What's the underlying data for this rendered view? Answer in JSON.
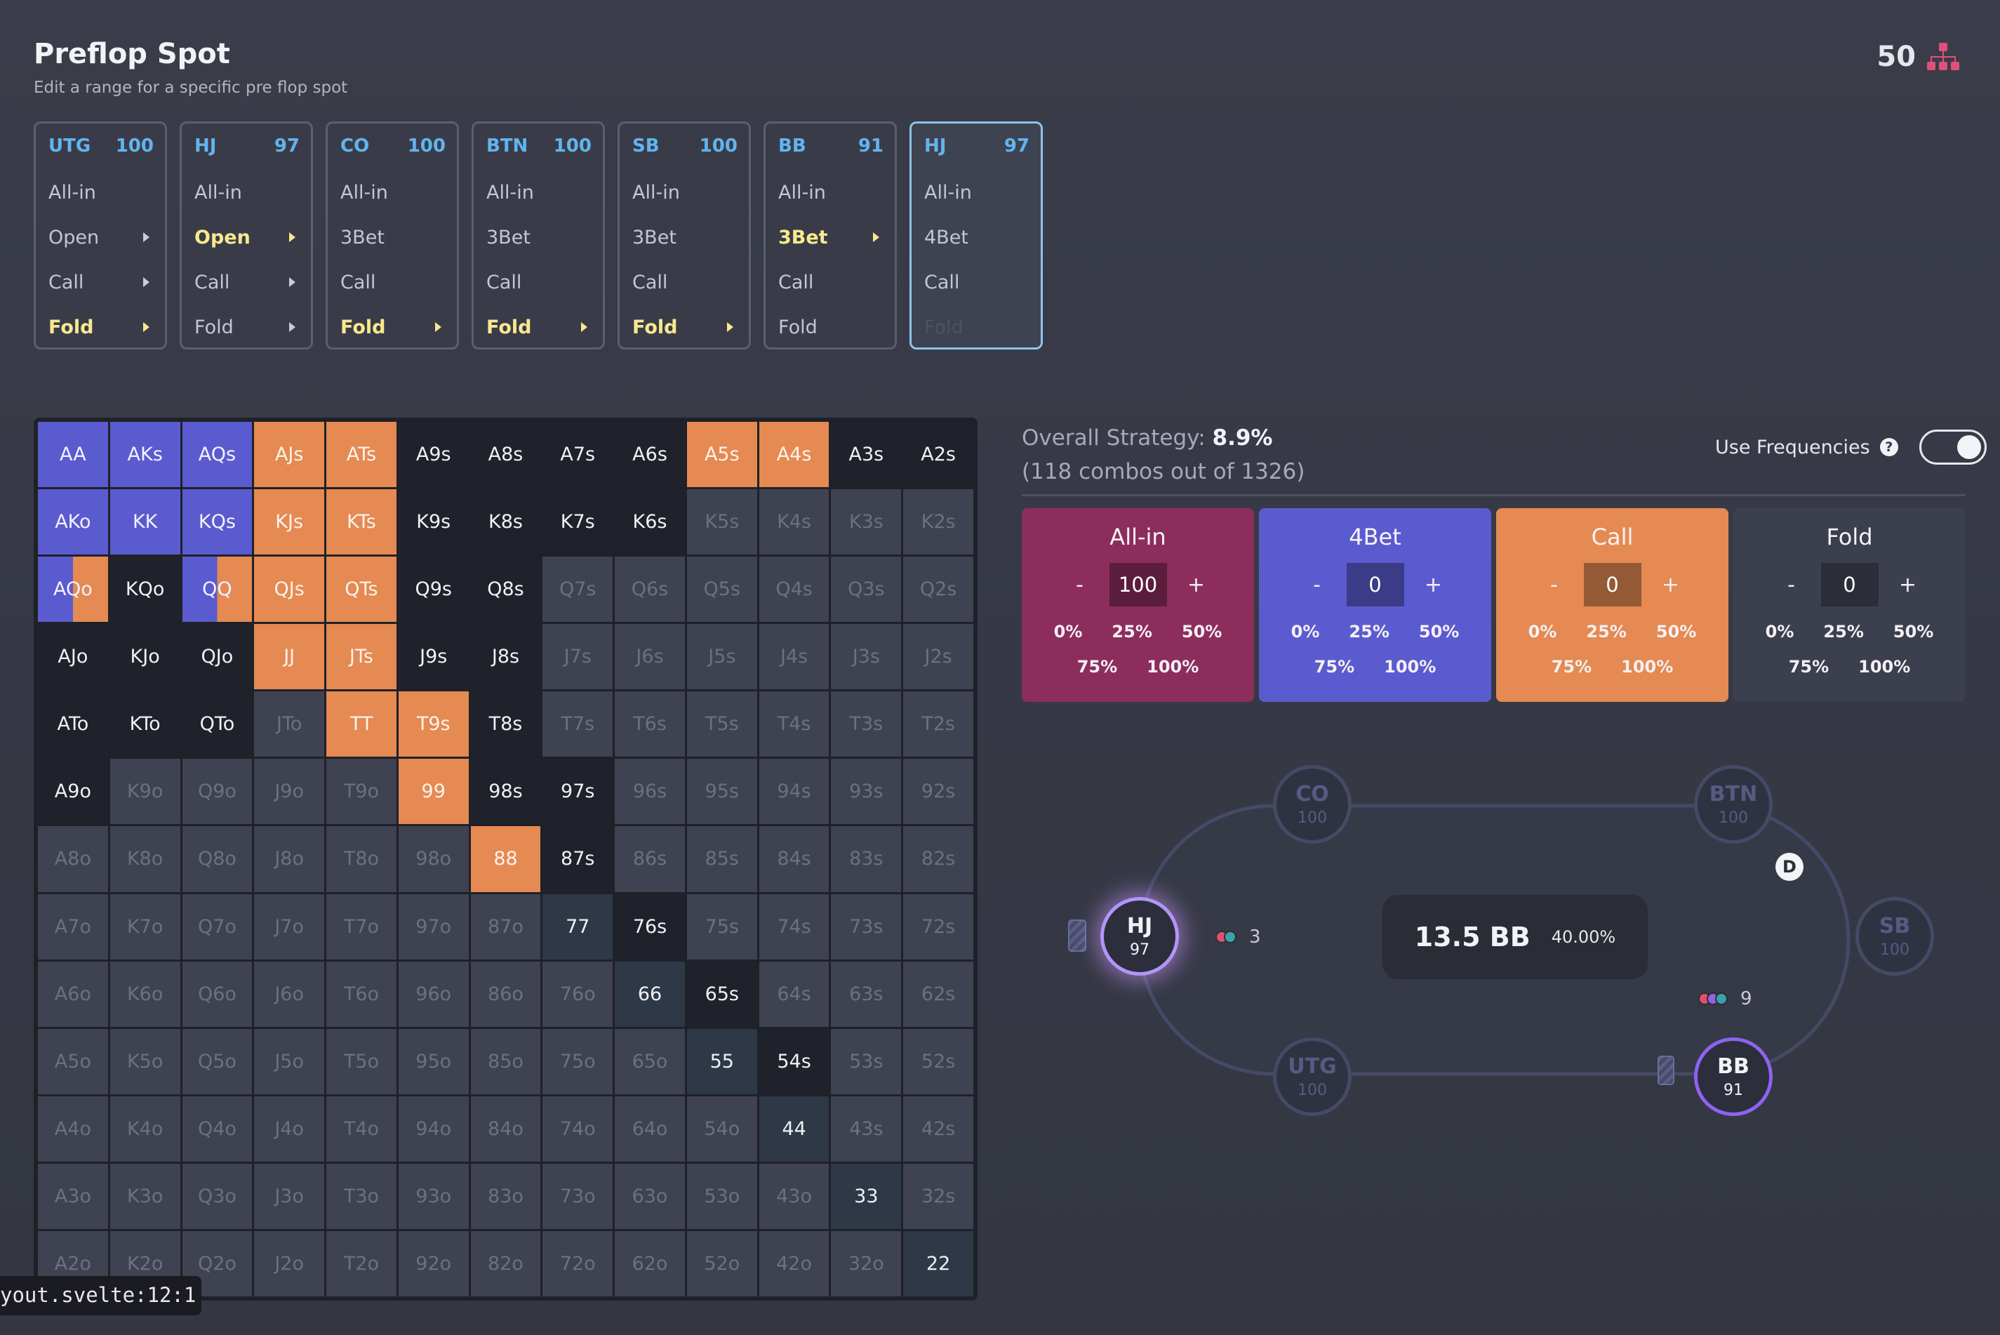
{
  "header": {
    "title": "Preflop Spot",
    "subtitle": "Edit a range for a specific pre flop spot"
  },
  "counter": {
    "value": "50",
    "icon": "hierarchy-icon"
  },
  "spots": [
    {
      "pos": "UTG",
      "stack": "100",
      "active": false,
      "actions": [
        {
          "label": "All-in",
          "arrow": false,
          "state": "normal"
        },
        {
          "label": "Open",
          "arrow": true,
          "state": "normal"
        },
        {
          "label": "Call",
          "arrow": true,
          "state": "normal"
        },
        {
          "label": "Fold",
          "arrow": true,
          "state": "selected"
        }
      ]
    },
    {
      "pos": "HJ",
      "stack": "97",
      "active": false,
      "actions": [
        {
          "label": "All-in",
          "arrow": false,
          "state": "normal"
        },
        {
          "label": "Open",
          "arrow": true,
          "state": "selected"
        },
        {
          "label": "Call",
          "arrow": true,
          "state": "normal"
        },
        {
          "label": "Fold",
          "arrow": true,
          "state": "normal"
        }
      ]
    },
    {
      "pos": "CO",
      "stack": "100",
      "active": false,
      "actions": [
        {
          "label": "All-in",
          "arrow": false,
          "state": "normal"
        },
        {
          "label": "3Bet",
          "arrow": false,
          "state": "normal"
        },
        {
          "label": "Call",
          "arrow": false,
          "state": "normal"
        },
        {
          "label": "Fold",
          "arrow": true,
          "state": "selected"
        }
      ]
    },
    {
      "pos": "BTN",
      "stack": "100",
      "active": false,
      "actions": [
        {
          "label": "All-in",
          "arrow": false,
          "state": "normal"
        },
        {
          "label": "3Bet",
          "arrow": false,
          "state": "normal"
        },
        {
          "label": "Call",
          "arrow": false,
          "state": "normal"
        },
        {
          "label": "Fold",
          "arrow": true,
          "state": "selected"
        }
      ]
    },
    {
      "pos": "SB",
      "stack": "100",
      "active": false,
      "actions": [
        {
          "label": "All-in",
          "arrow": false,
          "state": "normal"
        },
        {
          "label": "3Bet",
          "arrow": false,
          "state": "normal"
        },
        {
          "label": "Call",
          "arrow": false,
          "state": "normal"
        },
        {
          "label": "Fold",
          "arrow": true,
          "state": "selected"
        }
      ]
    },
    {
      "pos": "BB",
      "stack": "91",
      "active": false,
      "actions": [
        {
          "label": "All-in",
          "arrow": false,
          "state": "normal"
        },
        {
          "label": "3Bet",
          "arrow": true,
          "state": "selected"
        },
        {
          "label": "Call",
          "arrow": false,
          "state": "normal"
        },
        {
          "label": "Fold",
          "arrow": false,
          "state": "normal"
        }
      ]
    },
    {
      "pos": "HJ",
      "stack": "97",
      "active": true,
      "actions": [
        {
          "label": "All-in",
          "arrow": false,
          "state": "normal"
        },
        {
          "label": "4Bet",
          "arrow": false,
          "state": "normal"
        },
        {
          "label": "Call",
          "arrow": false,
          "state": "normal"
        },
        {
          "label": "Fold",
          "arrow": false,
          "state": "dim"
        }
      ]
    }
  ],
  "grid": {
    "rows": [
      [
        "AA",
        "AKs",
        "AQs",
        "AJs",
        "ATs",
        "A9s",
        "A8s",
        "A7s",
        "A6s",
        "A5s",
        "A4s",
        "A3s",
        "A2s"
      ],
      [
        "AKo",
        "KK",
        "KQs",
        "KJs",
        "KTs",
        "K9s",
        "K8s",
        "K7s",
        "K6s",
        "K5s",
        "K4s",
        "K3s",
        "K2s"
      ],
      [
        "AQo",
        "KQo",
        "QQ",
        "QJs",
        "QTs",
        "Q9s",
        "Q8s",
        "Q7s",
        "Q6s",
        "Q5s",
        "Q4s",
        "Q3s",
        "Q2s"
      ],
      [
        "AJo",
        "KJo",
        "QJo",
        "JJ",
        "JTs",
        "J9s",
        "J8s",
        "J7s",
        "J6s",
        "J5s",
        "J4s",
        "J3s",
        "J2s"
      ],
      [
        "ATo",
        "KTo",
        "QTo",
        "JTo",
        "TT",
        "T9s",
        "T8s",
        "T7s",
        "T6s",
        "T5s",
        "T4s",
        "T3s",
        "T2s"
      ],
      [
        "A9o",
        "K9o",
        "Q9o",
        "J9o",
        "T9o",
        "99",
        "98s",
        "97s",
        "96s",
        "95s",
        "94s",
        "93s",
        "92s"
      ],
      [
        "A8o",
        "K8o",
        "Q8o",
        "J8o",
        "T8o",
        "98o",
        "88",
        "87s",
        "86s",
        "85s",
        "84s",
        "83s",
        "82s"
      ],
      [
        "A7o",
        "K7o",
        "Q7o",
        "J7o",
        "T7o",
        "97o",
        "87o",
        "77",
        "76s",
        "75s",
        "74s",
        "73s",
        "72s"
      ],
      [
        "A6o",
        "K6o",
        "Q6o",
        "J6o",
        "T6o",
        "96o",
        "86o",
        "76o",
        "66",
        "65s",
        "64s",
        "63s",
        "62s"
      ],
      [
        "A5o",
        "K5o",
        "Q5o",
        "J5o",
        "T5o",
        "95o",
        "85o",
        "75o",
        "65o",
        "55",
        "54s",
        "53s",
        "52s"
      ],
      [
        "A4o",
        "K4o",
        "Q4o",
        "J4o",
        "T4o",
        "94o",
        "84o",
        "74o",
        "64o",
        "54o",
        "44",
        "43s",
        "42s"
      ],
      [
        "A3o",
        "K3o",
        "Q3o",
        "J3o",
        "T3o",
        "93o",
        "83o",
        "73o",
        "63o",
        "53o",
        "43o",
        "33",
        "32s"
      ],
      [
        "A2o",
        "K2o",
        "Q2o",
        "J2o",
        "T2o",
        "92o",
        "82o",
        "72o",
        "62o",
        "52o",
        "42o",
        "32o",
        "22"
      ]
    ],
    "states": [
      "RRRCCFFFFCCFF",
      "RRRCCFFFFNNNN",
      "SFSCCFFNNNNNN",
      "FFFCCFFNNNNNN",
      "FFFNCCFNNNNNN",
      "FNNNNCFFNNNNN",
      "NNNNNNCFNNNNN",
      "NNNNNNNPFNNNN",
      "NNNNNNNNPFNNN",
      "NNNNNNNNNPFNN",
      "NNNNNNNNNNPNN",
      "NNNNNNNNNNNPN",
      "NNNNNNNNNNNNP"
    ],
    "split": {
      "AQo": 0.5,
      "QQ": 0.5
    },
    "colors": {
      "raise": "#5b5bd0",
      "call": "#e48a52",
      "fold": "#20222b",
      "na": "#3f4250",
      "pair": "#2f3846"
    }
  },
  "overall": {
    "label": "Overall Strategy:",
    "value": "8.9%",
    "combos": "(118 combos out of 1326)"
  },
  "frequencies": {
    "label": "Use Frequencies",
    "help_icon": "question-icon",
    "enabled": true
  },
  "actions": [
    {
      "name": "All-in",
      "value": "100",
      "color": "#8d2d5c",
      "minus": "-",
      "plus": "+",
      "pct_row1": [
        "0%",
        "25%",
        "50%"
      ],
      "pct_row2": [
        "75%",
        "100%"
      ]
    },
    {
      "name": "4Bet",
      "value": "0",
      "color": "#5b5bd0",
      "minus": "-",
      "plus": "+",
      "pct_row1": [
        "0%",
        "25%",
        "50%"
      ],
      "pct_row2": [
        "75%",
        "100%"
      ]
    },
    {
      "name": "Call",
      "value": "0",
      "color": "#e48a52",
      "minus": "-",
      "plus": "+",
      "pct_row1": [
        "0%",
        "25%",
        "50%"
      ],
      "pct_row2": [
        "75%",
        "100%"
      ]
    },
    {
      "name": "Fold",
      "value": "0",
      "color": "#3c3f4d",
      "minus": "-",
      "plus": "+",
      "pct_row1": [
        "0%",
        "25%",
        "50%"
      ],
      "pct_row2": [
        "75%",
        "100%"
      ]
    }
  ],
  "table": {
    "seats": [
      {
        "pos": "CO",
        "stack": "100",
        "style": "idle"
      },
      {
        "pos": "BTN",
        "stack": "100",
        "style": "idle"
      },
      {
        "pos": "HJ",
        "stack": "97",
        "style": "hero"
      },
      {
        "pos": "SB",
        "stack": "100",
        "style": "idle"
      },
      {
        "pos": "UTG",
        "stack": "100",
        "style": "idle"
      },
      {
        "pos": "BB",
        "stack": "91",
        "style": "bb"
      }
    ],
    "pot": {
      "bb": "13.5 BB",
      "pct": "40.00%"
    },
    "bets": [
      {
        "amount": "3",
        "chips": [
          "#e0506e",
          "#3aa3a8"
        ]
      },
      {
        "amount": "9",
        "chips": [
          "#e0506e",
          "#9b5fe0",
          "#3aa3a8"
        ]
      }
    ],
    "dealer": "D"
  },
  "debug": {
    "text": "yout.svelte:12:1"
  }
}
